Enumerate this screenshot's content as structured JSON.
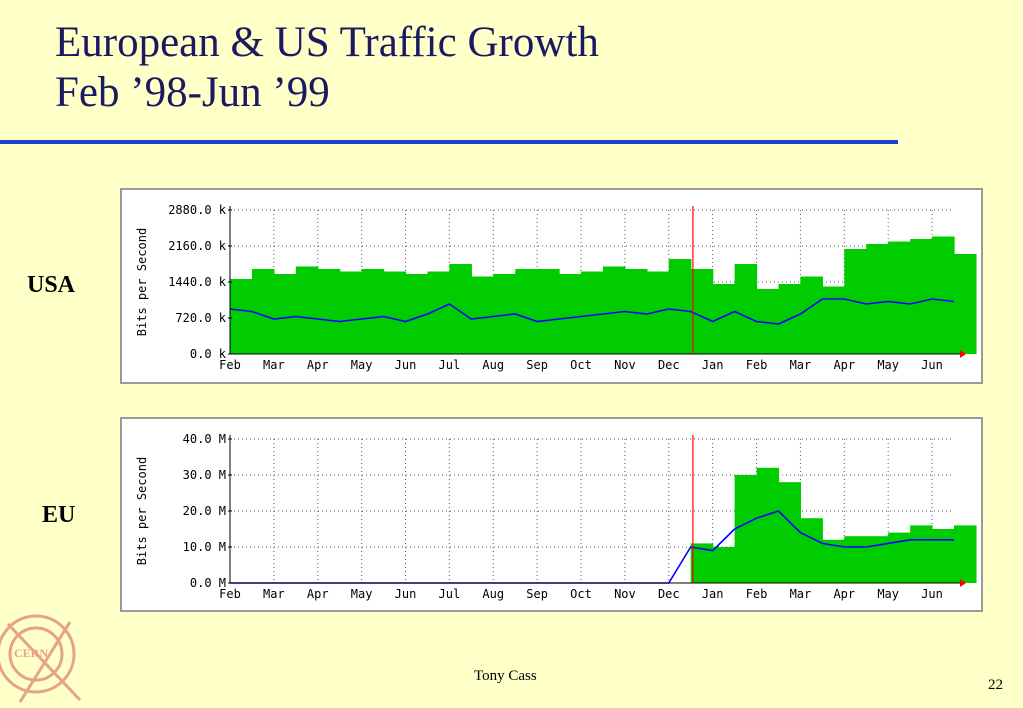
{
  "slide": {
    "title_line1": "European & US Traffic Growth",
    "title_line2": "Feb ’98-Jun ’99",
    "author": "Tony Cass",
    "page_number": "22",
    "logo_text": "CERN"
  },
  "colors": {
    "background": "#ffffc8",
    "title": "#1a1a60",
    "rule": "#1f3fd0",
    "in_fill": "#00cc00",
    "out_line": "#0000ff",
    "marker": "#ff0000"
  },
  "chart_data": [
    {
      "type": "area",
      "row_label": "USA",
      "ylabel": "Bits per Second",
      "ylim": [
        0,
        2880
      ],
      "y_unit": "k",
      "y_ticks": [
        "0.0 k",
        "720.0 k",
        "1440.0 k",
        "2160.0 k",
        "2880.0 k"
      ],
      "x_ticks": [
        "Feb",
        "Mar",
        "Apr",
        "May",
        "Jun",
        "Jul",
        "Aug",
        "Sep",
        "Oct",
        "Nov",
        "Dec",
        "Jan",
        "Feb",
        "Mar",
        "Apr",
        "May",
        "Jun"
      ],
      "x_range_months": [
        0,
        16.5
      ],
      "marker_month": 10.55,
      "grid": true,
      "series": [
        {
          "style": "area",
          "values_month_step": 0.5,
          "values": [
            1500,
            1700,
            1600,
            1750,
            1700,
            1650,
            1700,
            1650,
            1600,
            1650,
            1800,
            1550,
            1600,
            1700,
            1700,
            1600,
            1650,
            1750,
            1700,
            1650,
            1900,
            1700,
            1400,
            1800,
            1300,
            1400,
            1550,
            1350,
            2100,
            2200,
            2250,
            2300,
            2350,
            2000
          ]
        },
        {
          "style": "line",
          "values_month_step": 0.5,
          "values": [
            900,
            850,
            700,
            750,
            700,
            650,
            700,
            750,
            650,
            800,
            1000,
            700,
            750,
            800,
            650,
            700,
            750,
            800,
            850,
            800,
            900,
            850,
            650,
            850,
            650,
            600,
            800,
            1100,
            1100,
            1000,
            1050,
            1000,
            1100,
            1050
          ]
        }
      ]
    },
    {
      "type": "area",
      "row_label": "EU",
      "ylabel": "Bits per Second",
      "ylim": [
        0,
        40
      ],
      "y_unit": "M",
      "y_ticks": [
        "0.0 M",
        "10.0 M",
        "20.0 M",
        "30.0 M",
        "40.0 M"
      ],
      "x_ticks": [
        "Feb",
        "Mar",
        "Apr",
        "May",
        "Jun",
        "Jul",
        "Aug",
        "Sep",
        "Oct",
        "Nov",
        "Dec",
        "Jan",
        "Feb",
        "Mar",
        "Apr",
        "May",
        "Jun"
      ],
      "x_range_months": [
        0,
        16.5
      ],
      "marker_month": 10.55,
      "grid": true,
      "series": [
        {
          "style": "area",
          "values_month_step": 0.5,
          "values": [
            0,
            0,
            0,
            0,
            0,
            0,
            0,
            0,
            0,
            0,
            0,
            0,
            0,
            0,
            0,
            0,
            0,
            0,
            0,
            0,
            0,
            11,
            10,
            30,
            32,
            28,
            18,
            12,
            13,
            13,
            14,
            16,
            15,
            16
          ]
        },
        {
          "style": "line",
          "values_month_step": 0.5,
          "values": [
            0,
            0,
            0,
            0,
            0,
            0,
            0,
            0,
            0,
            0,
            0,
            0,
            0,
            0,
            0,
            0,
            0,
            0,
            0,
            0,
            0,
            10,
            9,
            15,
            18,
            20,
            14,
            11,
            10,
            10,
            11,
            12,
            12,
            12
          ]
        }
      ]
    }
  ]
}
